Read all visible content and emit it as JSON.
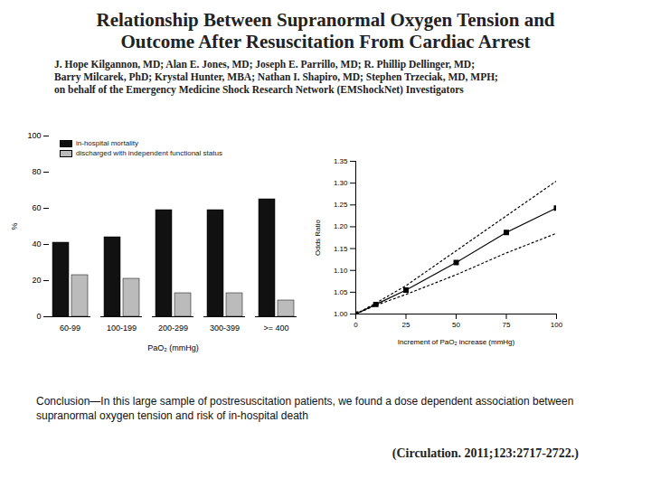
{
  "header": {
    "title": [
      "Relationship Between Supranormal Oxygen Tension and",
      "Outcome After Resuscitation From Cardiac Arrest"
    ],
    "authors": [
      "J. Hope Kilgannon, MD; Alan E. Jones, MD; Joseph E. Parrillo, MD; R. Phillip Dellinger, MD;",
      "Barry Milcarek, PhD; Krystal Hunter, MBA; Nathan I. Shapiro, MD; Stephen Trzeciak, MD, MPH;",
      "on behalf of the Emergency Medicine Shock Research Network (EMShockNet) Investigators"
    ]
  },
  "chart_data": [
    {
      "type": "bar",
      "xlabel": "PaO₂ (mmHg)",
      "ylabel": "%",
      "categories": [
        "60-99",
        "100-199",
        "200-299",
        "300-399",
        ">= 400"
      ],
      "series": [
        {
          "name": "in-hospital mortality",
          "color": "#111111",
          "values": [
            41,
            44,
            59,
            59,
            65
          ]
        },
        {
          "name": "discharged with independent functional status",
          "color": "#bbbbbb",
          "values": [
            23,
            21,
            13,
            13,
            9
          ]
        }
      ],
      "ylim": [
        0,
        100
      ],
      "yticks": [
        0,
        20,
        40,
        60,
        80,
        100
      ],
      "legend": "top-left"
    },
    {
      "type": "line",
      "xlabel": "Increment of PaO₂ increase (mmHg)",
      "ylabel": "Odds Ratio",
      "x": [
        0,
        10,
        25,
        50,
        75,
        100
      ],
      "series": [
        {
          "color": "#000000",
          "line_style": "solid",
          "marker": "square",
          "values": [
            1.0,
            1.022,
            1.055,
            1.118,
            1.187,
            1.243
          ]
        },
        {
          "color": "#000000",
          "line_style": "dotted",
          "values": [
            1.0,
            1.025,
            1.065,
            1.145,
            1.225,
            1.305
          ]
        },
        {
          "color": "#000000",
          "line_style": "dotted",
          "values": [
            1.0,
            1.02,
            1.045,
            1.09,
            1.14,
            1.185
          ]
        }
      ],
      "xlim": [
        0,
        100
      ],
      "xticks": [
        0,
        25,
        50,
        75,
        100
      ],
      "ylim": [
        1.0,
        1.35
      ],
      "yticks": [
        {
          "value": 1.0,
          "label": "1.00"
        },
        {
          "value": 1.05,
          "label": "1.05"
        },
        {
          "value": 1.1,
          "label": "1.10"
        },
        {
          "value": 1.15,
          "label": "1.15"
        },
        {
          "value": 1.2,
          "label": "1.20"
        },
        {
          "value": 1.25,
          "label": "1.25"
        },
        {
          "value": 1.3,
          "label": "1.30"
        },
        {
          "value": 1.35,
          "label": "1.35"
        }
      ]
    }
  ],
  "conclusion": "Conclusion—In this large sample of postresuscitation patients, we found a dose dependent association between supranormal oxygen tension and risk of in-hospital death",
  "citation": "(Circulation. 2011;123:2717-2722.)"
}
